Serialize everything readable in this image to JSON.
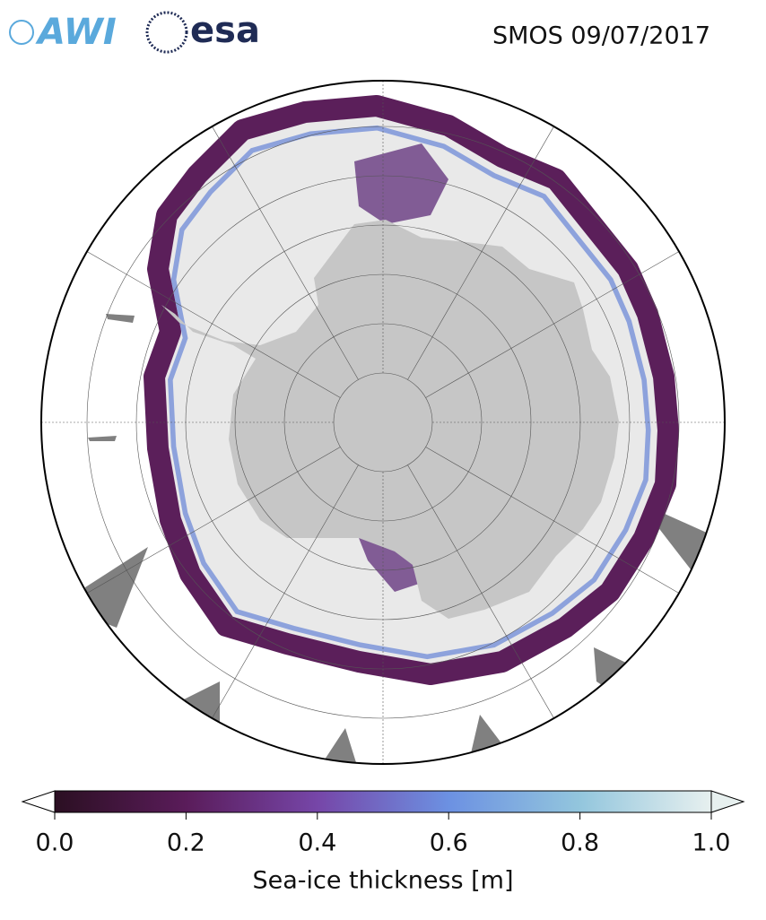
{
  "header": {
    "logos": [
      "AWI",
      "esa"
    ],
    "title": "SMOS 09/07/2017"
  },
  "colorbar": {
    "label": "Sea-ice thickness [m]",
    "lim": [
      0,
      1
    ],
    "ticks": [
      {
        "value": 0,
        "label": "0.0"
      },
      {
        "value": 0.2,
        "label": "0.2"
      },
      {
        "value": 0.4,
        "label": "0.4"
      },
      {
        "value": 0.6,
        "label": "0.6"
      },
      {
        "value": 0.8,
        "label": "0.8"
      },
      {
        "value": 1,
        "label": "1.0"
      }
    ]
  }
}
